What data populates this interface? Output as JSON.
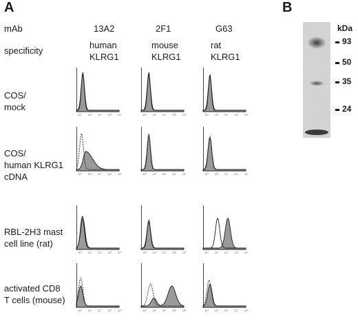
{
  "figure": {
    "panel_a_letter": "A",
    "panel_b_letter": "B",
    "mab_header": "mAb",
    "specificity_header": "specificity",
    "antibodies": [
      {
        "name": "13A2",
        "spec_line1": "human",
        "spec_line2": "KLRG1"
      },
      {
        "name": "2F1",
        "spec_line1": "mouse",
        "spec_line2": "KLRG1"
      },
      {
        "name": "G63",
        "spec_line1": "rat",
        "spec_line2": "KLRG1"
      }
    ],
    "rows": [
      {
        "line1": "COS/",
        "line2": "mock",
        "line3": ""
      },
      {
        "line1": "COS/",
        "line2": "human KLRG1",
        "line3": "cDNA"
      },
      {
        "line1": "RBL-2H3 mast",
        "line2": "cell line (rat)",
        "line3": ""
      },
      {
        "line1": "activated CD8",
        "line2": "T cells (mouse)",
        "line3": ""
      }
    ],
    "axis_ticks": [
      "10°",
      "10¹",
      "10²",
      "10³",
      "10⁴"
    ],
    "blot": {
      "unit_label": "kDa",
      "markers": [
        "93",
        "50",
        "35",
        "24"
      ]
    },
    "colors": {
      "fill": "#9a9a9a",
      "line": "#1a1a1a",
      "blot_bg": "#dcdcdc"
    }
  }
}
